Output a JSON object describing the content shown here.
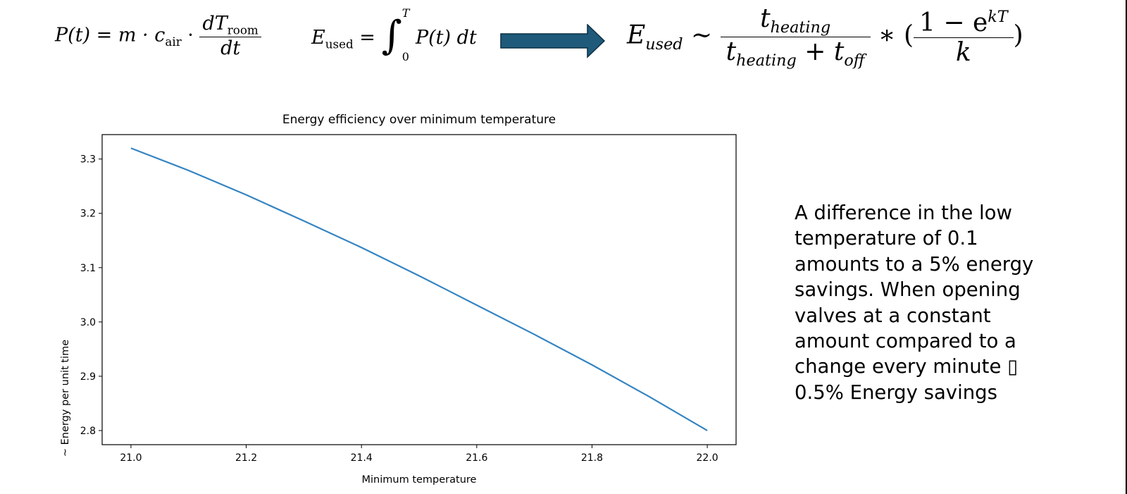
{
  "formulas": {
    "power": {
      "lhs": "P(t) = m · c",
      "c_sub": "air",
      "dot": "·",
      "num": "dT",
      "num_sub": "room",
      "den": "dt"
    },
    "energy": {
      "lhs": "E",
      "lhs_sub": "used",
      "eq": "=",
      "upper": "T",
      "lower": "0",
      "integrand": "P(t) dt"
    },
    "proportional": {
      "lhs": "E",
      "lhs_sub": "used",
      "sim": "∼",
      "frac1_num": "t",
      "frac1_num_sub": "heating",
      "frac1_den_a": "t",
      "frac1_den_a_sub": "heating",
      "frac1_den_plus": "+",
      "frac1_den_b": "t",
      "frac1_den_b_sub": "off",
      "star": "∗ (",
      "frac2_num": "1 − e",
      "frac2_num_sup": "kT",
      "frac2_den": "k",
      "close": ")"
    }
  },
  "arrow": {
    "fill": "#1f5a7a",
    "stroke": "#0d2f42"
  },
  "chart_data": {
    "type": "line",
    "title": "Energy efficiency over minimum temperature",
    "xlabel": "Minimum temperature",
    "ylabel": "~ Energy per unit time",
    "xlim": [
      20.95,
      22.05
    ],
    "ylim": [
      2.774,
      3.345
    ],
    "xticks": [
      21.0,
      21.2,
      21.4,
      21.6,
      21.8,
      22.0
    ],
    "xtick_labels": [
      "21.0",
      "21.2",
      "21.4",
      "21.6",
      "21.8",
      "22.0"
    ],
    "yticks": [
      2.8,
      2.9,
      3.0,
      3.1,
      3.2,
      3.3
    ],
    "ytick_labels": [
      "2.8",
      "2.9",
      "3.0",
      "3.1",
      "3.2",
      "3.3"
    ],
    "grid": false,
    "series": [
      {
        "color": "#3584c1",
        "x": [
          21.0,
          21.1,
          21.2,
          21.3,
          21.4,
          21.5,
          21.6,
          21.7,
          21.8,
          21.9,
          22.0
        ],
        "y": [
          3.32,
          3.279,
          3.234,
          3.186,
          3.137,
          3.085,
          3.031,
          2.977,
          2.921,
          2.862,
          2.8
        ]
      }
    ]
  },
  "conclusion": "A difference in the low\ntemperature of 0.1\namounts to a 5% energy\nsavings. When opening\nvalves at a constant\namount compared to a\nchange every minute ▯\n0.5% Energy savings"
}
